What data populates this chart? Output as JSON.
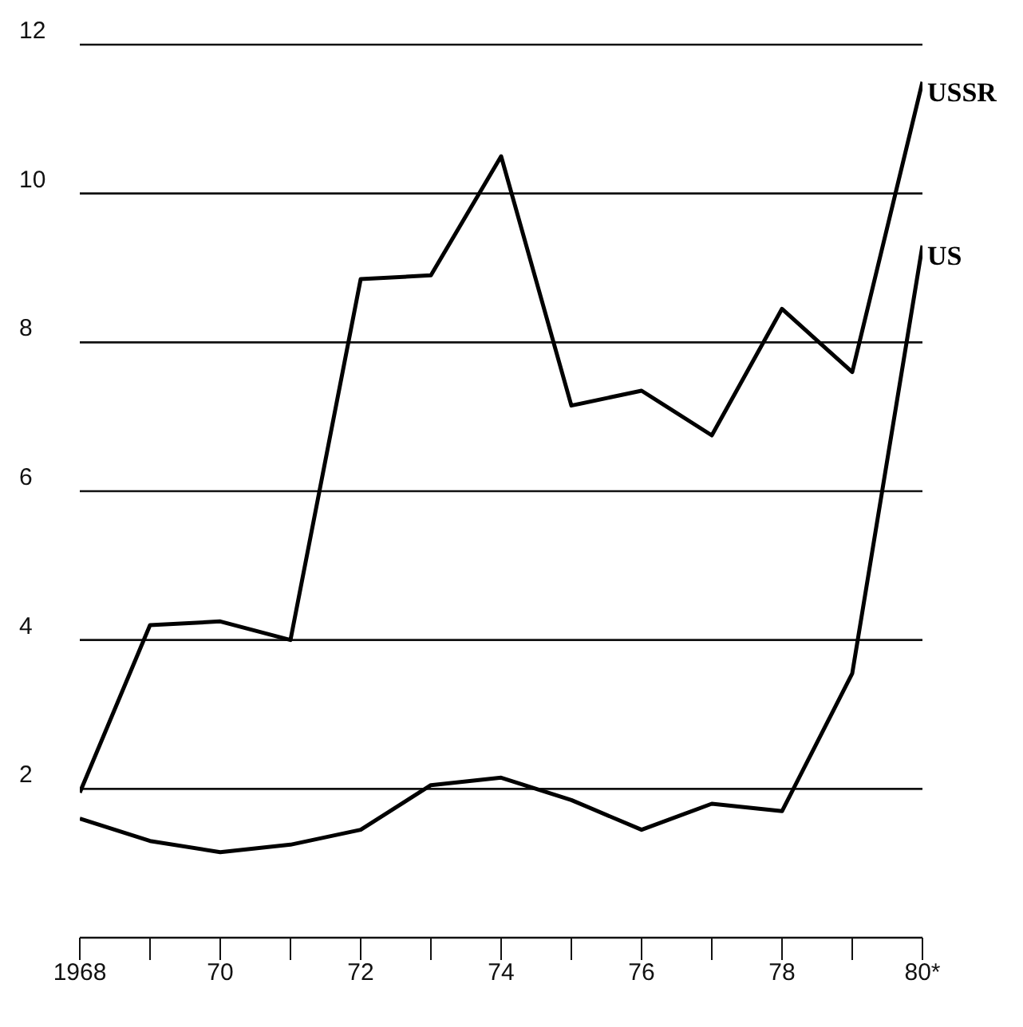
{
  "chart_data": {
    "type": "line",
    "categories": [
      "1968",
      null,
      "70",
      null,
      "72",
      null,
      "74",
      null,
      "76",
      null,
      "78",
      null,
      "80*"
    ],
    "series": [
      {
        "name": "USSR",
        "color": "#000000",
        "values": [
          1.95,
          4.2,
          4.25,
          4.0,
          8.85,
          8.9,
          10.5,
          7.15,
          7.35,
          6.75,
          8.45,
          7.6,
          11.5
        ]
      },
      {
        "name": "US",
        "color": "#000000",
        "values": [
          1.6,
          1.3,
          1.15,
          1.25,
          1.45,
          2.05,
          2.15,
          1.85,
          1.45,
          1.8,
          1.7,
          3.55,
          9.3
        ]
      }
    ],
    "ylim": [
      0,
      12
    ],
    "yticks": [
      2,
      4,
      6,
      8,
      10,
      12
    ],
    "grid": "y",
    "marker": "none",
    "line_style": "solid",
    "legend": false
  }
}
